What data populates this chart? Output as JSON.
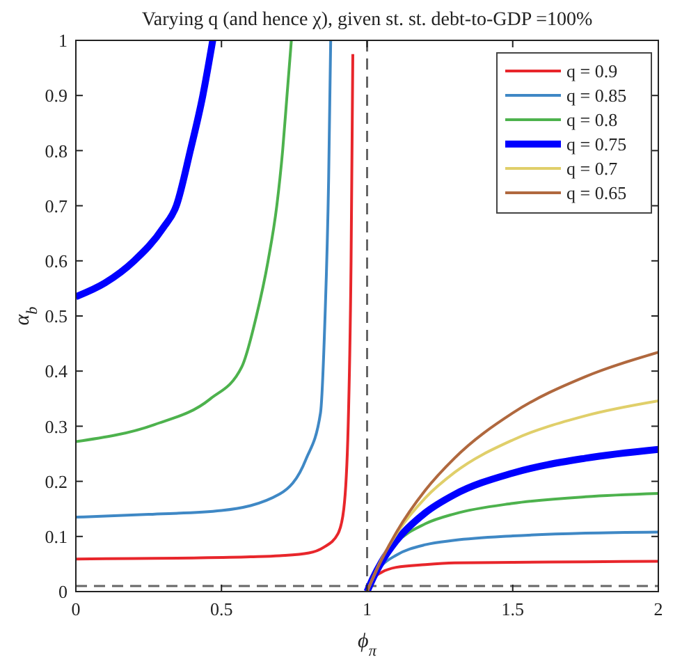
{
  "chart_data": {
    "type": "line",
    "title": "Varying q (and hence χ), given st. st. debt-to-GDP =100%",
    "xlabel": "ϕ$_{π}$",
    "ylabel": "α$_{b}$",
    "xlim": [
      0,
      2
    ],
    "ylim": [
      0,
      1
    ],
    "xticks": [
      0,
      0.5,
      1,
      1.5,
      2
    ],
    "yticks": [
      0,
      0.1,
      0.2,
      0.3,
      0.4,
      0.5,
      0.6,
      0.7,
      0.8,
      0.9,
      1
    ],
    "grid": false,
    "legend": "top right",
    "marker": "none",
    "line_style": "solid",
    "ref_lines": [
      {
        "axis": "x",
        "value": 1,
        "line_style": "dashed",
        "color": "#666666"
      },
      {
        "axis": "y",
        "value": 0.01,
        "line_style": "dashed",
        "color": "#666666"
      }
    ],
    "series": [
      {
        "name": "q = 0.9",
        "color": "#e8262b",
        "x": [
          0,
          0.2,
          0.4,
          0.6,
          0.7,
          0.8,
          0.85,
          0.9,
          0.92,
          0.935,
          0.945,
          0.951,
          0.99,
          1,
          1.02,
          1.05,
          1.1,
          1.2,
          1.3,
          1.5,
          1.75,
          2
        ],
        "values": [
          0.059,
          0.06,
          0.061,
          0.063,
          0.065,
          0.07,
          0.08,
          0.105,
          0.15,
          0.3,
          0.6,
          0.975,
          null,
          0,
          0.023,
          0.035,
          0.044,
          0.049,
          0.052,
          0.053,
          0.054,
          0.055
        ]
      },
      {
        "name": "q = 0.85",
        "color": "#3f88c5",
        "x": [
          0,
          0.25,
          0.5,
          0.7,
          0.79,
          0.84,
          0.855,
          0.868,
          0.875,
          0.99,
          1,
          1.02,
          1.05,
          1.1,
          1.2,
          1.3,
          1.5,
          1.75,
          2
        ],
        "values": [
          0.135,
          0.14,
          0.147,
          0.177,
          0.24,
          0.324,
          0.49,
          0.75,
          1,
          null,
          0,
          0.025,
          0.047,
          0.066,
          0.085,
          0.093,
          0.101,
          0.106,
          0.108
        ]
      },
      {
        "name": "q = 0.8",
        "color": "#4db24d",
        "x": [
          0,
          0.27,
          0.46,
          0.57,
          0.62,
          0.66,
          0.69,
          0.71,
          0.725,
          0.74,
          0.99,
          1,
          1.02,
          1.1,
          1.2,
          1.3,
          1.5,
          1.75,
          2
        ],
        "values": [
          0.272,
          0.303,
          0.349,
          0.408,
          0.5,
          0.6,
          0.7,
          0.8,
          0.9,
          1,
          null,
          0,
          0.027,
          0.088,
          0.123,
          0.141,
          0.16,
          0.172,
          0.178
        ]
      },
      {
        "name": "q = 0.75",
        "color": "#0000ff",
        "x": [
          0,
          0.1,
          0.2,
          0.3,
          0.345,
          0.393,
          0.436,
          0.47,
          0.99,
          1,
          1.02,
          1.05,
          1.1,
          1.2,
          1.3,
          1.5,
          1.75,
          2
        ],
        "values": [
          0.535,
          0.56,
          0.6,
          0.66,
          0.7,
          0.8,
          0.9,
          1,
          null,
          0,
          0.024,
          0.054,
          0.092,
          0.143,
          0.176,
          0.215,
          0.242,
          0.258
        ]
      },
      {
        "name": "q = 0.7",
        "color": "#e0cf6a",
        "x": [
          1,
          1.05,
          1.1,
          1.2,
          1.3,
          1.5,
          1.75,
          2
        ],
        "values": [
          0,
          0.059,
          0.104,
          0.17,
          0.216,
          0.275,
          0.319,
          0.346
        ]
      },
      {
        "name": "q = 0.65",
        "color": "#b0683e",
        "x": [
          1,
          1.02,
          1.05,
          1.1,
          1.2,
          1.3,
          1.5,
          1.75,
          2
        ],
        "values": [
          0,
          0.025,
          0.058,
          0.107,
          0.184,
          0.242,
          0.324,
          0.39,
          0.434
        ]
      }
    ]
  }
}
